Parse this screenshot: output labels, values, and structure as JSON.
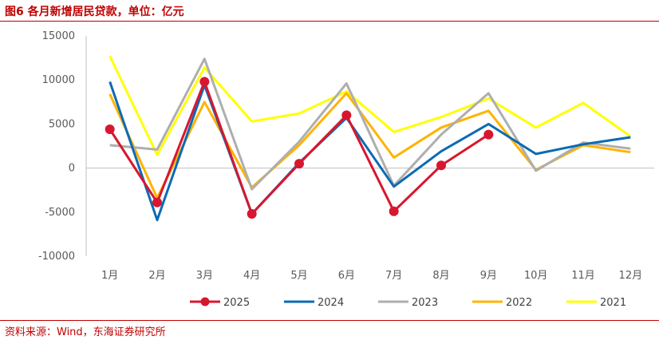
{
  "header": {
    "title": "图6 各月新增居民贷款，单位：亿元"
  },
  "footer": {
    "source": "资料来源：Wind，东海证券研究所"
  },
  "chart_data": {
    "type": "line",
    "title": "图6 各月新增居民贷款，单位：亿元",
    "xlabel": "",
    "ylabel": "",
    "categories": [
      "1月",
      "2月",
      "3月",
      "4月",
      "5月",
      "6月",
      "7月",
      "8月",
      "9月",
      "10月",
      "11月",
      "12月"
    ],
    "ylim": [
      -10000,
      15000
    ],
    "yticks": [
      15000,
      10000,
      5000,
      0,
      -5000,
      -10000
    ],
    "grid": false,
    "legend_position": "bottom",
    "series": [
      {
        "name": "2025",
        "color": "#d7172f",
        "markers": true,
        "values": [
          4400,
          -3900,
          9800,
          -5200,
          500,
          6000,
          -4900,
          300,
          3800,
          null,
          null,
          null
        ]
      },
      {
        "name": "2024",
        "color": "#0b6bb5",
        "markers": false,
        "values": [
          9800,
          -5900,
          9400,
          -5200,
          600,
          5700,
          -2100,
          1900,
          5000,
          1600,
          2700,
          3500
        ]
      },
      {
        "name": "2023",
        "color": "#aeaeae",
        "markers": false,
        "values": [
          2600,
          2100,
          12400,
          -2400,
          3000,
          9600,
          -2000,
          3800,
          8500,
          -300,
          2900,
          2200
        ]
      },
      {
        "name": "2022",
        "color": "#ffb300",
        "markers": false,
        "values": [
          8400,
          -3400,
          7500,
          -2200,
          2600,
          8500,
          1200,
          4600,
          6500,
          -200,
          2600,
          1800
        ]
      },
      {
        "name": "2021",
        "color": "#ffff00",
        "markers": false,
        "values": [
          12700,
          1500,
          11400,
          5300,
          6200,
          8700,
          4100,
          5800,
          7900,
          4600,
          7400,
          3600
        ]
      }
    ]
  }
}
